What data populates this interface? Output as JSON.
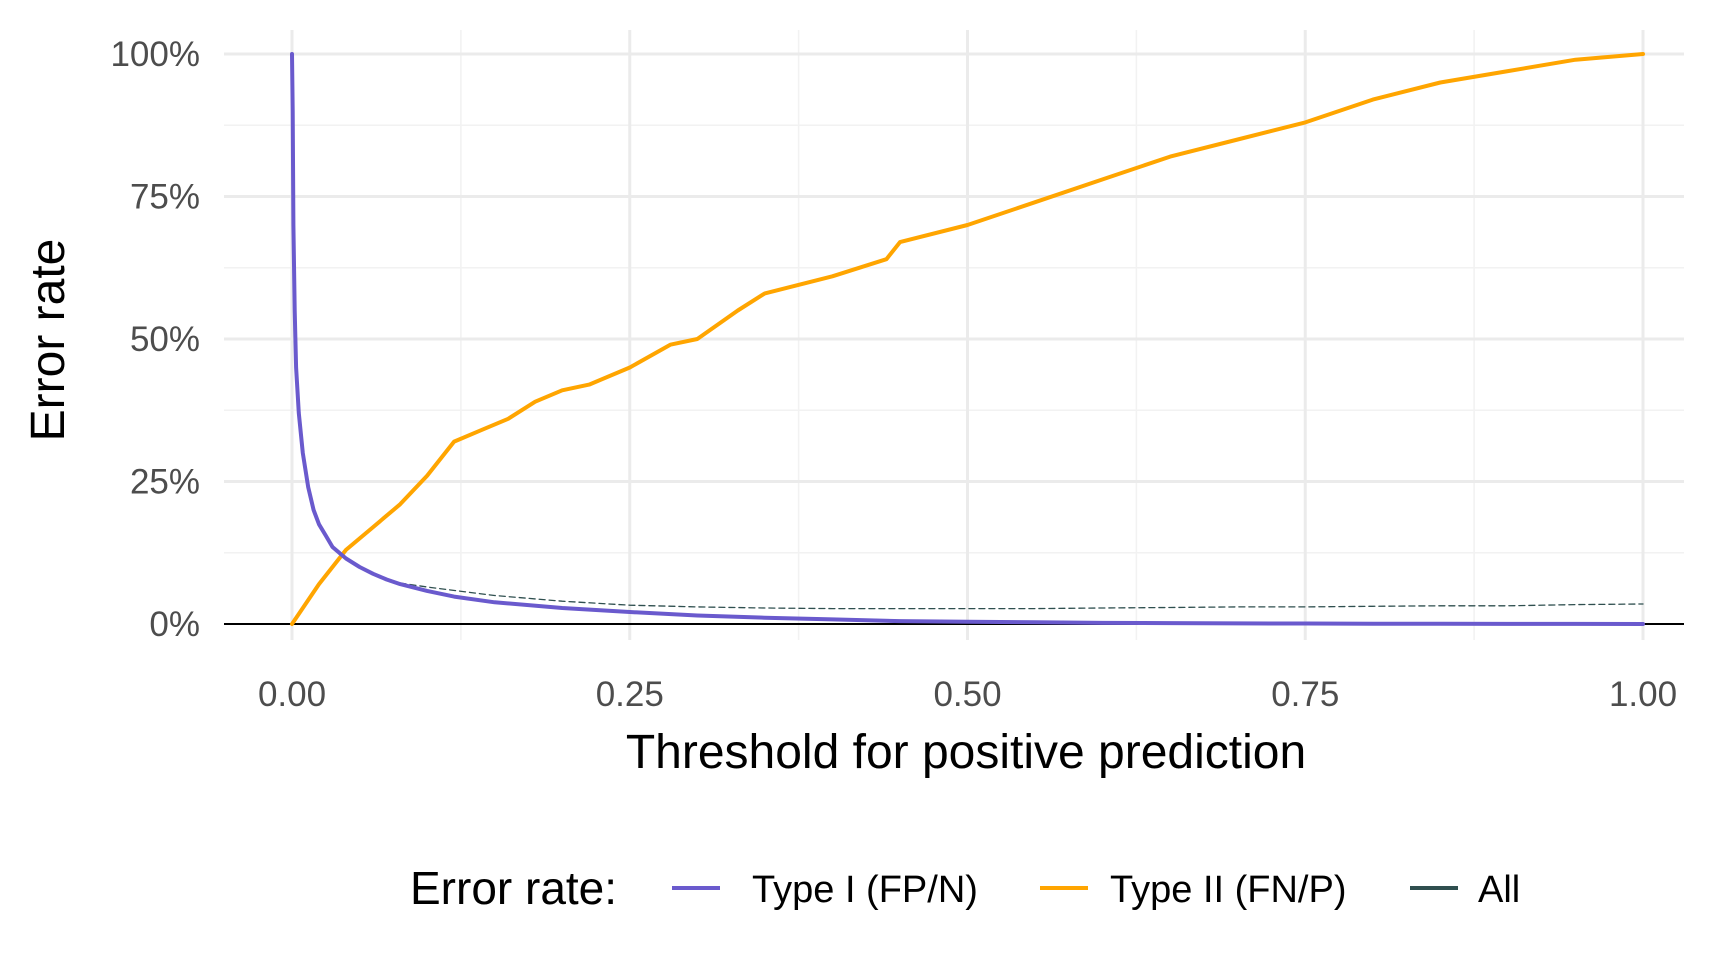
{
  "chart_data": {
    "type": "line",
    "title": "",
    "xlabel": "Threshold for positive prediction",
    "ylabel": "Error rate",
    "xlim": [
      0,
      1
    ],
    "ylim": [
      0,
      1
    ],
    "x_ticks": [
      0,
      0.25,
      0.5,
      0.75,
      1.0
    ],
    "x_tick_labels": [
      "0.00",
      "0.25",
      "0.50",
      "0.75",
      "1.00"
    ],
    "y_ticks": [
      0,
      0.25,
      0.5,
      0.75,
      1.0
    ],
    "y_tick_labels": [
      "0%",
      "25%",
      "50%",
      "75%",
      "100%"
    ],
    "grid": true,
    "legend": {
      "title": "Error rate:",
      "position": "bottom"
    },
    "series": [
      {
        "name": "Type I (FP/N)",
        "color": "#6a5acd",
        "style": "solid",
        "x": [
          0,
          0.0005,
          0.001,
          0.002,
          0.003,
          0.005,
          0.008,
          0.012,
          0.016,
          0.02,
          0.025,
          0.03,
          0.04,
          0.05,
          0.06,
          0.07,
          0.08,
          0.1,
          0.12,
          0.15,
          0.2,
          0.25,
          0.3,
          0.35,
          0.4,
          0.45,
          0.5,
          0.55,
          0.6,
          0.65,
          0.7,
          0.75,
          0.8,
          0.85,
          0.9,
          0.95,
          1.0
        ],
        "y": [
          1.0,
          0.9,
          0.7,
          0.55,
          0.45,
          0.37,
          0.3,
          0.24,
          0.2,
          0.175,
          0.155,
          0.135,
          0.115,
          0.1,
          0.088,
          0.078,
          0.07,
          0.058,
          0.048,
          0.038,
          0.028,
          0.021,
          0.015,
          0.011,
          0.008,
          0.005,
          0.004,
          0.003,
          0.002,
          0.0015,
          0.001,
          0.0008,
          0.0005,
          0.0003,
          0.0002,
          0.0001,
          0.0
        ]
      },
      {
        "name": "Type II (FN/P)",
        "color": "#ffa500",
        "style": "solid",
        "x": [
          0,
          0.02,
          0.04,
          0.06,
          0.08,
          0.1,
          0.12,
          0.14,
          0.16,
          0.18,
          0.2,
          0.22,
          0.25,
          0.28,
          0.3,
          0.33,
          0.35,
          0.4,
          0.44,
          0.45,
          0.5,
          0.55,
          0.6,
          0.65,
          0.7,
          0.75,
          0.8,
          0.85,
          0.9,
          0.95,
          1.0
        ],
        "y": [
          0,
          0.07,
          0.13,
          0.17,
          0.21,
          0.26,
          0.32,
          0.34,
          0.36,
          0.39,
          0.41,
          0.42,
          0.45,
          0.49,
          0.5,
          0.55,
          0.58,
          0.61,
          0.64,
          0.67,
          0.7,
          0.74,
          0.78,
          0.82,
          0.85,
          0.88,
          0.92,
          0.95,
          0.97,
          0.99,
          1.0
        ]
      },
      {
        "name": "All",
        "color": "#2f4f4f",
        "style": "dashed",
        "x": [
          0.08,
          0.1,
          0.15,
          0.2,
          0.25,
          0.3,
          0.35,
          0.4,
          0.45,
          0.5,
          0.55,
          0.6,
          0.65,
          0.7,
          0.75,
          0.8,
          0.85,
          0.9,
          0.95,
          1.0
        ],
        "y": [
          0.072,
          0.065,
          0.05,
          0.04,
          0.033,
          0.03,
          0.028,
          0.027,
          0.027,
          0.027,
          0.027,
          0.028,
          0.029,
          0.03,
          0.03,
          0.031,
          0.032,
          0.032,
          0.034,
          0.035
        ]
      }
    ]
  }
}
